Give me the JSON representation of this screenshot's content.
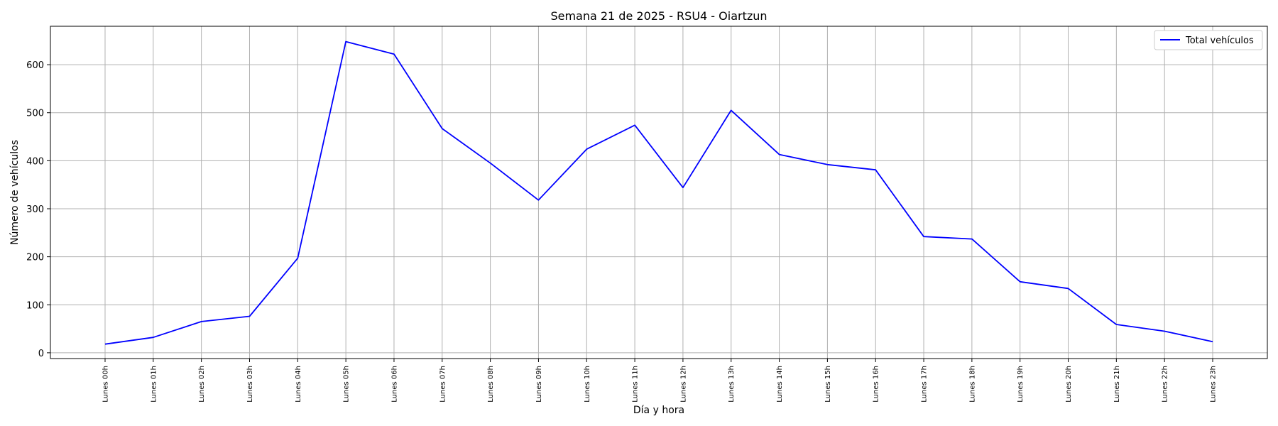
{
  "chart_data": {
    "type": "line",
    "title": "Semana 21 de 2025 - RSU4 - Oiartzun",
    "xlabel": "Día y hora",
    "ylabel": "Número de vehículos",
    "categories": [
      "Lunes 00h",
      "Lunes 01h",
      "Lunes 02h",
      "Lunes 03h",
      "Lunes 04h",
      "Lunes 05h",
      "Lunes 06h",
      "Lunes 07h",
      "Lunes 08h",
      "Lunes 09h",
      "Lunes 10h",
      "Lunes 11h",
      "Lunes 12h",
      "Lunes 13h",
      "Lunes 14h",
      "Lunes 15h",
      "Lunes 16h",
      "Lunes 17h",
      "Lunes 18h",
      "Lunes 19h",
      "Lunes 20h",
      "Lunes 21h",
      "Lunes 22h",
      "Lunes 23h"
    ],
    "series": [
      {
        "name": "Total vehículos",
        "color": "#0000ff",
        "values": [
          18,
          32,
          65,
          76,
          197,
          648,
          622,
          467,
          395,
          318,
          424,
          474,
          344,
          505,
          413,
          392,
          381,
          242,
          237,
          148,
          134,
          59,
          45,
          23
        ]
      }
    ],
    "yticks": [
      0,
      100,
      200,
      300,
      400,
      500,
      600
    ],
    "ylim": [
      -12,
      680
    ],
    "grid": true,
    "legend_position": "top-right"
  }
}
